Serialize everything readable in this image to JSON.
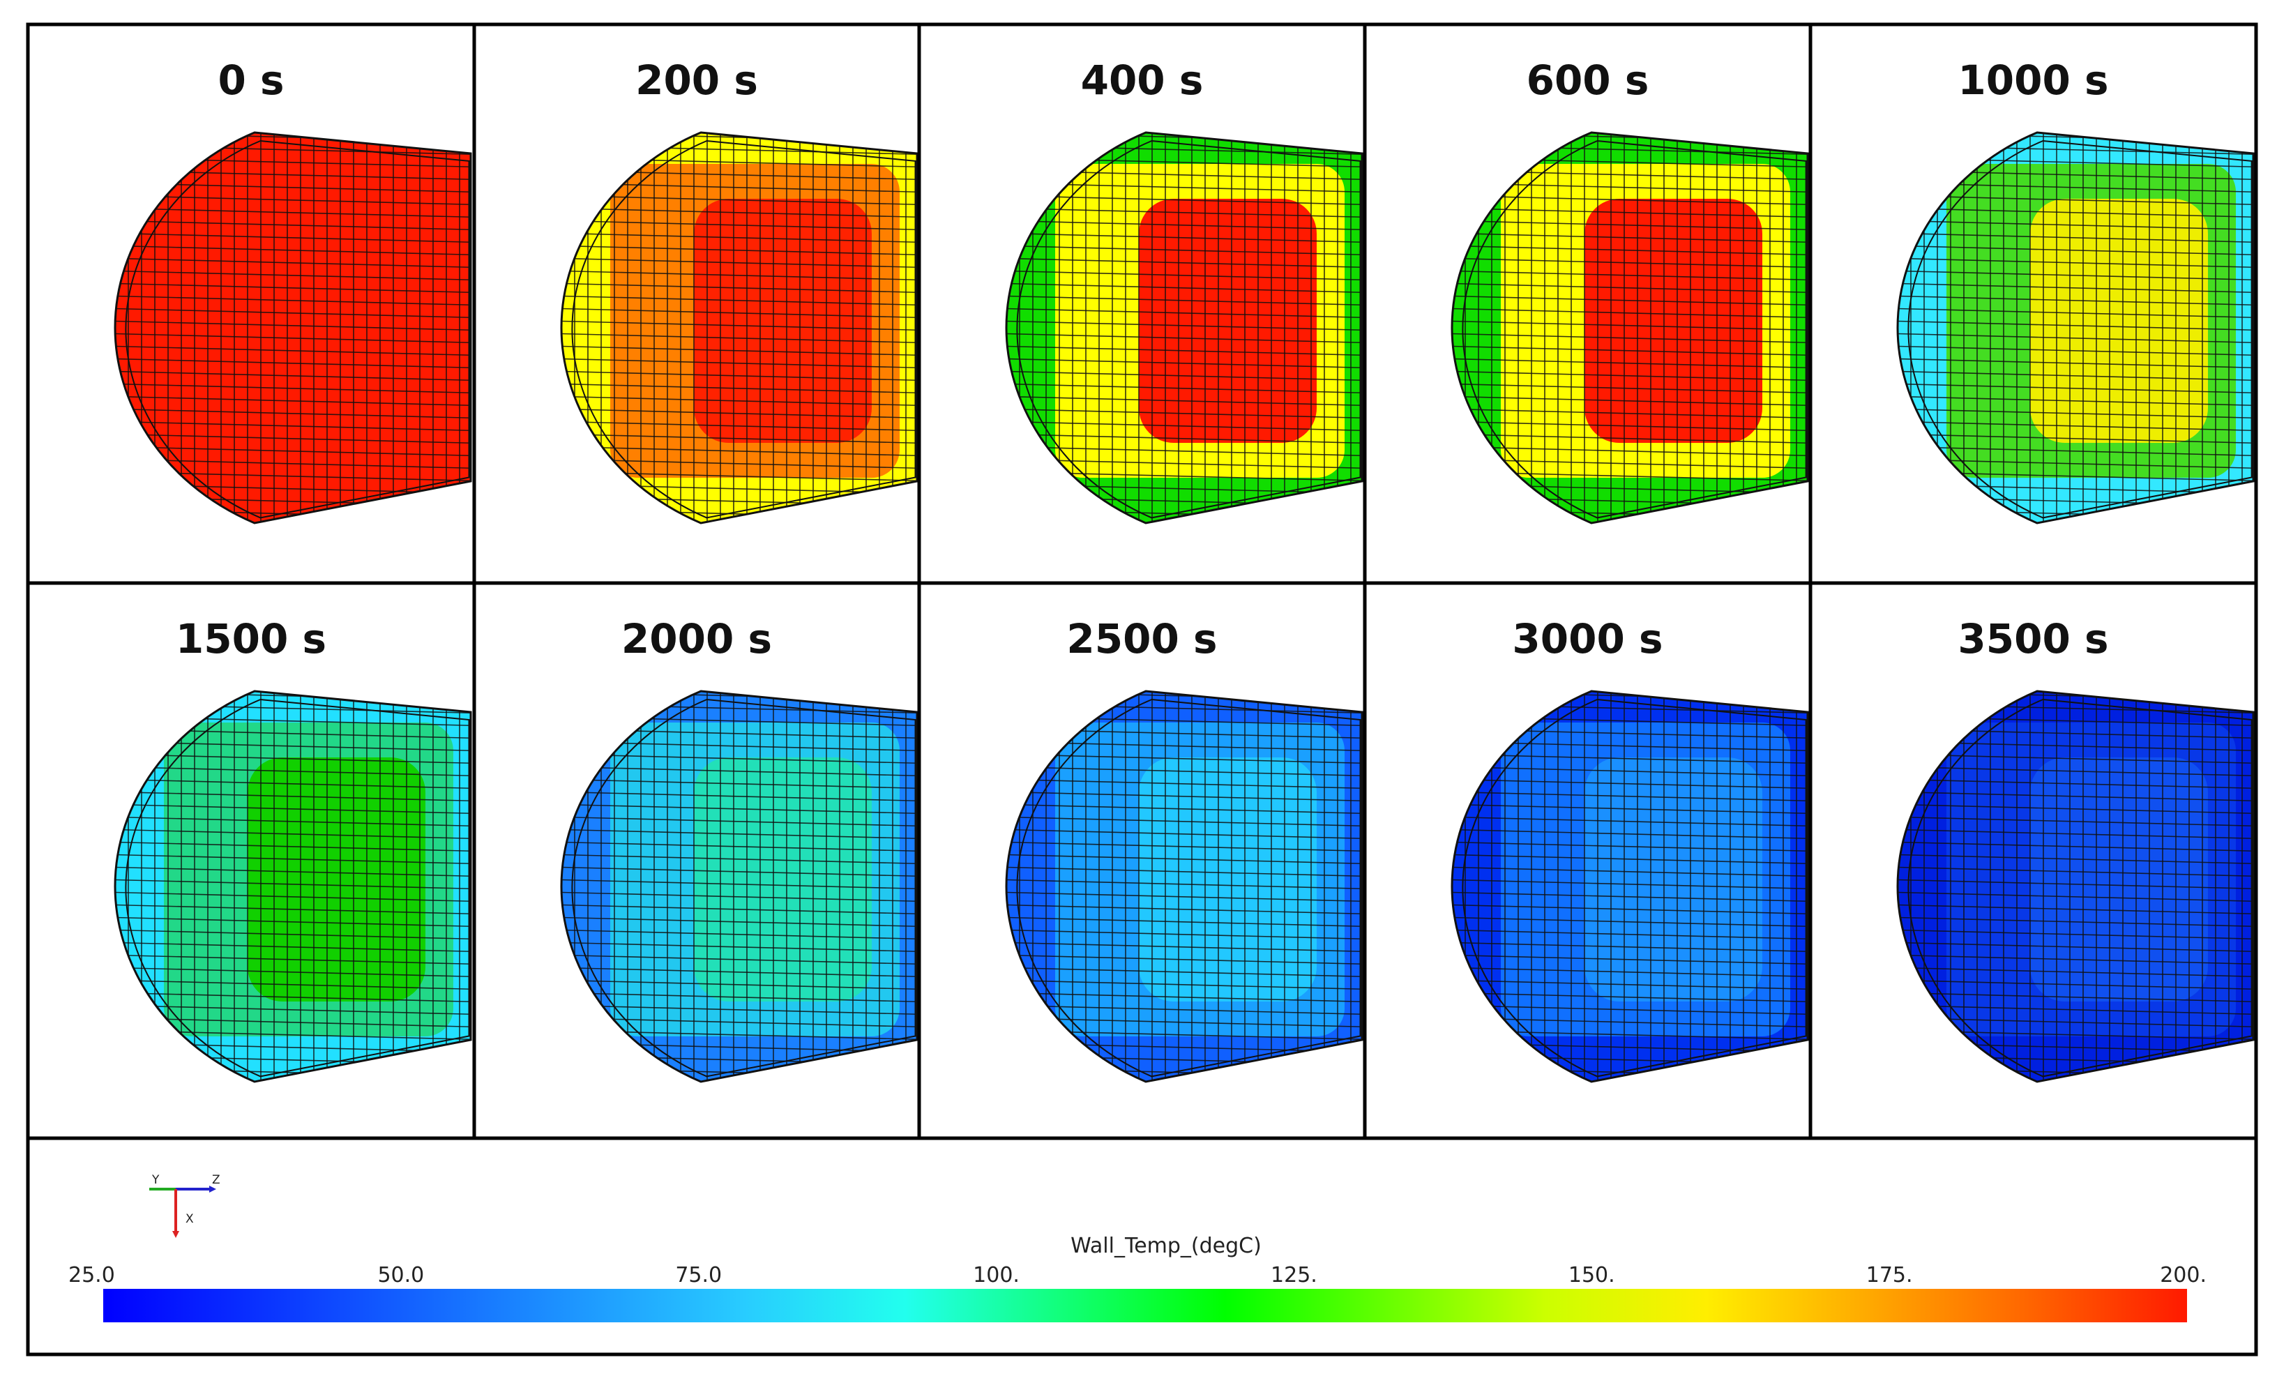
{
  "panels": [
    {
      "label": "0 s",
      "inner": "#ff1a00",
      "mid": "#ff1a00",
      "outer": "#ff1a00"
    },
    {
      "label": "200 s",
      "inner": "#ff2200",
      "mid": "#ff8000",
      "outer": "#ffff00"
    },
    {
      "label": "400 s",
      "inner": "#ff1a00",
      "mid": "#ffff00",
      "outer": "#11dd00"
    },
    {
      "label": "600 s",
      "inner": "#ff1a00",
      "mid": "#ffff00",
      "outer": "#11dd00"
    },
    {
      "label": "1000 s",
      "inner": "#eeee00",
      "mid": "#44dd22",
      "outer": "#33e8ff"
    },
    {
      "label": "1500 s",
      "inner": "#11d000",
      "mid": "#22d888",
      "outer": "#22e0ff"
    },
    {
      "label": "2000 s",
      "inner": "#22e0b8",
      "mid": "#22c8f0",
      "outer": "#1a80ff"
    },
    {
      "label": "2500 s",
      "inner": "#22c8ff",
      "mid": "#1aa0ff",
      "outer": "#1060ff"
    },
    {
      "label": "3000 s",
      "inner": "#1a90ff",
      "mid": "#1070ff",
      "outer": "#0030f0"
    },
    {
      "label": "3500 s",
      "inner": "#1050f0",
      "mid": "#0838e8",
      "outer": "#0020e0"
    }
  ],
  "colorbar": {
    "title": "Wall_Temp_(degC)",
    "ticks": [
      "25.0",
      "50.0",
      "75.0",
      "100.",
      "125.",
      "150.",
      "175.",
      "200."
    ],
    "colors": [
      "#0000ff",
      "#0a33ff",
      "#1466ff",
      "#1e99ff",
      "#28ccff",
      "#22ffee",
      "#11ff77",
      "#00ff00",
      "#66ff00",
      "#ccff00",
      "#ffee00",
      "#ffaa00",
      "#ff6600",
      "#ff1a00"
    ]
  },
  "axes_triad": {
    "y": "Y",
    "z": "Z",
    "x": "X"
  }
}
